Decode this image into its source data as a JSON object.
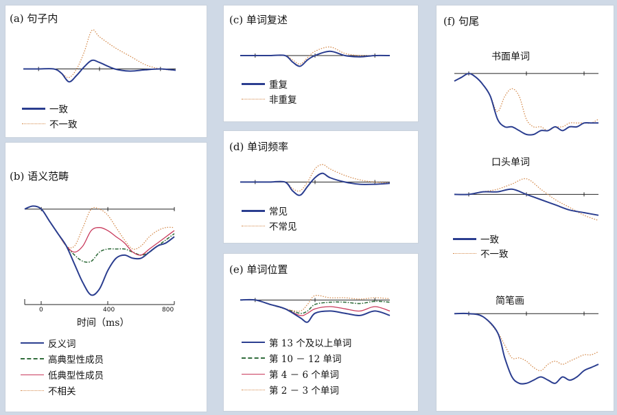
{
  "colors": {
    "blue": "#2a3d8f",
    "orange": "#d4894a",
    "green": "#2f6b3a",
    "red": "#c8385a",
    "axis": "#222222"
  },
  "panels": {
    "a": {
      "title": "(a) 句子内",
      "legend": [
        "一致",
        "不一致"
      ]
    },
    "b": {
      "title": "(b) 语义范畴",
      "legend": [
        "反义词",
        "高典型性成员",
        "低典型性成员",
        "不相关"
      ],
      "xlabel": "时间（ms）",
      "ticks": [
        "0",
        "400",
        "800"
      ]
    },
    "c": {
      "title": "(c) 单词复述",
      "legend": [
        "重复",
        "非重复"
      ]
    },
    "d": {
      "title": "(d) 单词频率",
      "legend": [
        "常见",
        "不常见"
      ]
    },
    "e": {
      "title": "(e) 单词位置",
      "legend": [
        "第 13 个及以上单词",
        "第 10 － 12 单词",
        "第 4 － 6 个单词",
        "第 2 － 3 个单词"
      ]
    },
    "f": {
      "title": "(f) 句尾",
      "sub1": "书面单词",
      "sub2": "口头单词",
      "sub3": "简笔画",
      "legend": [
        "一致",
        "不一致"
      ]
    }
  },
  "chart_data": [
    {
      "type": "line",
      "panel": "a",
      "xlim": [
        -100,
        900
      ],
      "ylim": [
        -6,
        10
      ],
      "x": [
        -100,
        0,
        100,
        150,
        200,
        250,
        300,
        350,
        400,
        500,
        600,
        700,
        800,
        900
      ],
      "series": [
        {
          "name": "一致",
          "values": [
            0,
            0,
            0,
            -1,
            -3,
            -1.5,
            0.5,
            2,
            1.5,
            0,
            -0.5,
            -0.2,
            0,
            -0.3
          ]
        },
        {
          "name": "不一致",
          "values": [
            0,
            0,
            0,
            -1,
            -2,
            0,
            4,
            9,
            7.5,
            5,
            3,
            1,
            0,
            -0.3
          ]
        }
      ]
    },
    {
      "type": "line",
      "panel": "b",
      "xlim": [
        -100,
        800
      ],
      "ylim": [
        -16,
        3
      ],
      "x": [
        -100,
        -50,
        0,
        50,
        100,
        150,
        200,
        250,
        300,
        350,
        400,
        450,
        500,
        550,
        600,
        650,
        700,
        750,
        800
      ],
      "series": [
        {
          "name": "反义词",
          "values": [
            0,
            0.5,
            0,
            -2,
            -4,
            -6,
            -9,
            -12,
            -14,
            -13,
            -10,
            -8,
            -7.5,
            -8,
            -8,
            -7,
            -6,
            -5.5,
            -4.5
          ]
        },
        {
          "name": "高典型性成员",
          "values": [
            0,
            0.5,
            0,
            -2,
            -4,
            -6,
            -7.5,
            -8.5,
            -8.5,
            -7,
            -6.5,
            -6.5,
            -6.5,
            -7,
            -7.5,
            -7,
            -6,
            -5,
            -4
          ]
        },
        {
          "name": "低典型性成员",
          "values": [
            0,
            0.5,
            0,
            -2,
            -4,
            -6,
            -7,
            -6,
            -3.5,
            -3,
            -3.5,
            -4.5,
            -5.5,
            -7,
            -7.5,
            -6.5,
            -5.5,
            -4.5,
            -3.5
          ]
        },
        {
          "name": "不相关",
          "values": [
            0,
            0.5,
            0,
            -2,
            -4,
            -6,
            -6,
            -3,
            0,
            0,
            -1,
            -3,
            -5,
            -6.5,
            -6,
            -4.5,
            -3.5,
            -3,
            -3
          ]
        }
      ]
    },
    {
      "type": "line",
      "panel": "c",
      "xlim": [
        -100,
        900
      ],
      "ylim": [
        -4,
        4
      ],
      "x": [
        -100,
        0,
        100,
        200,
        250,
        300,
        350,
        400,
        500,
        600,
        700,
        800,
        900
      ],
      "series": [
        {
          "name": "重复",
          "values": [
            0,
            0,
            0,
            0,
            -1.5,
            -2.5,
            -1,
            0,
            1,
            0,
            -0.3,
            0,
            0
          ]
        },
        {
          "name": "非重复",
          "values": [
            0,
            0,
            0,
            0,
            -1,
            -2,
            -0.5,
            1,
            2,
            0.5,
            0,
            0,
            0
          ]
        }
      ]
    },
    {
      "type": "line",
      "panel": "d",
      "xlim": [
        -100,
        900
      ],
      "ylim": [
        -4,
        6
      ],
      "x": [
        -100,
        0,
        100,
        200,
        250,
        300,
        350,
        400,
        450,
        500,
        600,
        700,
        800,
        900
      ],
      "series": [
        {
          "name": "常见",
          "values": [
            0,
            0,
            0,
            0,
            -2,
            -3,
            -1,
            1,
            2,
            1,
            0,
            -0.5,
            -0.5,
            -0.3
          ]
        },
        {
          "name": "不常见",
          "values": [
            0,
            0,
            0,
            0,
            -1.5,
            -2,
            0,
            3,
            4,
            3,
            1.5,
            0.5,
            0,
            -0.2
          ]
        }
      ]
    },
    {
      "type": "line",
      "panel": "e",
      "xlim": [
        -100,
        900
      ],
      "ylim": [
        -6,
        3
      ],
      "x": [
        -100,
        0,
        100,
        200,
        300,
        350,
        400,
        500,
        600,
        700,
        800,
        900
      ],
      "series": [
        {
          "name": "第 13 个及以上单词",
          "values": [
            0,
            0,
            -1,
            -2,
            -4,
            -5,
            -3,
            -2.5,
            -3,
            -3.5,
            -2.5,
            -3.5
          ]
        },
        {
          "name": "第 10 － 12 单词",
          "values": [
            0,
            0,
            -1,
            -2,
            -3,
            -2.5,
            -1,
            -0.5,
            -0.5,
            -0.8,
            -0.3,
            -0.5
          ]
        },
        {
          "name": "第 4 － 6 个单词",
          "values": [
            0,
            0,
            -1,
            -2,
            -3.5,
            -3,
            -2,
            -1.5,
            -2,
            -2.5,
            -1.5,
            -2.5
          ]
        },
        {
          "name": "第 2 － 3 个单词",
          "values": [
            0,
            0,
            -1,
            -2,
            -2.5,
            -1,
            1,
            0.5,
            0.5,
            0.2,
            0.5,
            0.3
          ]
        }
      ]
    },
    {
      "type": "line",
      "panel": "f-written",
      "xlim": [
        -100,
        900
      ],
      "ylim": [
        -8,
        1
      ],
      "x": [
        -100,
        -50,
        0,
        50,
        100,
        150,
        200,
        250,
        300,
        350,
        400,
        450,
        500,
        550,
        600,
        650,
        700,
        750,
        800,
        850,
        900
      ],
      "series": [
        {
          "name": "一致",
          "values": [
            -1,
            -0.5,
            0,
            -0.5,
            -1.5,
            -3,
            -6,
            -7,
            -7,
            -7.5,
            -8,
            -8,
            -7.5,
            -7.5,
            -7,
            -7.5,
            -7,
            -7,
            -6.5,
            -6.5,
            -6.5
          ]
        },
        {
          "name": "不一致",
          "values": [
            -1,
            -0.5,
            0,
            -0.5,
            -1.5,
            -3,
            -5,
            -3,
            -2,
            -3,
            -6,
            -7,
            -7,
            -7.5,
            -7,
            -7,
            -6.5,
            -6.5,
            -6.5,
            -6.5,
            -6
          ]
        }
      ]
    },
    {
      "type": "line",
      "panel": "f-spoken",
      "xlim": [
        -100,
        900
      ],
      "ylim": [
        -6,
        4
      ],
      "x": [
        -100,
        0,
        100,
        200,
        300,
        400,
        500,
        600,
        700,
        800,
        900
      ],
      "series": [
        {
          "name": "一致",
          "values": [
            0,
            0,
            0.5,
            0.5,
            1,
            0,
            -1,
            -2,
            -3,
            -3.5,
            -4
          ]
        },
        {
          "name": "不一致",
          "values": [
            0,
            0,
            0.5,
            1,
            2,
            3,
            1,
            -1,
            -2.5,
            -4,
            -5
          ]
        }
      ]
    },
    {
      "type": "line",
      "panel": "f-drawing",
      "xlim": [
        -100,
        900
      ],
      "ylim": [
        -12,
        1
      ],
      "x": [
        -100,
        0,
        100,
        200,
        250,
        300,
        350,
        400,
        450,
        500,
        550,
        600,
        650,
        700,
        750,
        800,
        850,
        900
      ],
      "series": [
        {
          "name": "一致",
          "values": [
            0,
            0,
            -0.5,
            -3,
            -7,
            -10,
            -11,
            -11,
            -10.5,
            -10,
            -10.5,
            -11,
            -10,
            -10.5,
            -10,
            -9,
            -8.5,
            -8
          ]
        },
        {
          "name": "不一致",
          "values": [
            0,
            0,
            -0.5,
            -3,
            -5,
            -7,
            -7,
            -7.5,
            -8.5,
            -9,
            -8,
            -7.5,
            -8,
            -7.5,
            -7,
            -6.5,
            -6.5,
            -6
          ]
        }
      ]
    }
  ]
}
